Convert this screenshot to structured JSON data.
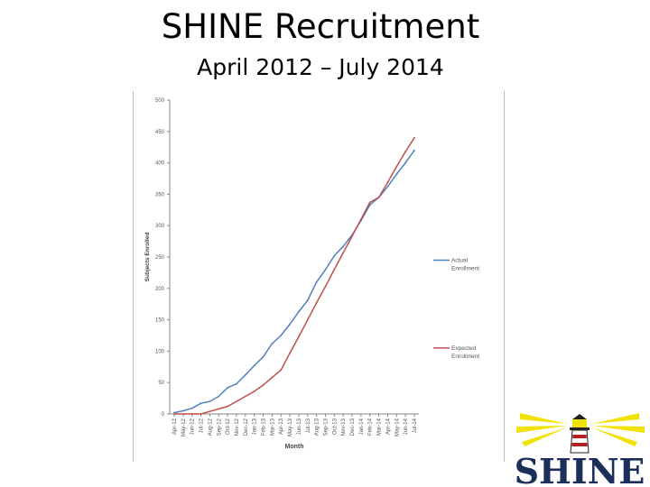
{
  "slide": {
    "title": "SHINE Recruitment",
    "subtitle": "April 2012 – July 2014"
  },
  "logo": {
    "text": "SHINE",
    "colors": {
      "rays": "#f2e200",
      "tower_red": "#b41f24",
      "letters": "#1b2f5a",
      "dark": "#222222"
    }
  },
  "chart_data": {
    "type": "line",
    "title": "",
    "xlabel": "Month",
    "ylabel": "Subjects Enrolled",
    "ylim": [
      0,
      500
    ],
    "yticks": [
      0,
      50,
      100,
      150,
      200,
      250,
      300,
      350,
      400,
      450,
      500
    ],
    "grid": false,
    "legend_position": "right",
    "categories": [
      "Apr-12",
      "May-12",
      "Jun-12",
      "Jul-12",
      "Aug-12",
      "Sep-12",
      "Oct-12",
      "Nov-12",
      "Dec-12",
      "Jan-13",
      "Feb-13",
      "Mar-13",
      "Apr-13",
      "May-13",
      "Jun-13",
      "Jul-13",
      "Aug-13",
      "Sep-13",
      "Oct-13",
      "Nov-13",
      "Dec-13",
      "Jan-14",
      "Feb-14",
      "Mar-14",
      "Apr-14",
      "May-14",
      "Jun-14",
      "Jul-14"
    ],
    "series": [
      {
        "name": "Actual Enrollment",
        "color": "#4f81bd",
        "values": [
          2,
          5,
          9,
          17,
          20,
          28,
          42,
          48,
          62,
          77,
          91,
          112,
          125,
          143,
          163,
          181,
          210,
          230,
          252,
          267,
          285,
          308,
          333,
          345,
          362,
          382,
          400,
          420
        ]
      },
      {
        "name": "Expected Enrollment",
        "color": "#c0504d",
        "values": [
          0,
          0,
          0,
          0,
          4,
          8,
          12,
          20,
          28,
          36,
          46,
          58,
          70,
          97,
          123,
          150,
          177,
          203,
          230,
          257,
          283,
          310,
          337,
          345,
          369,
          394,
          418,
          440
        ]
      }
    ]
  }
}
